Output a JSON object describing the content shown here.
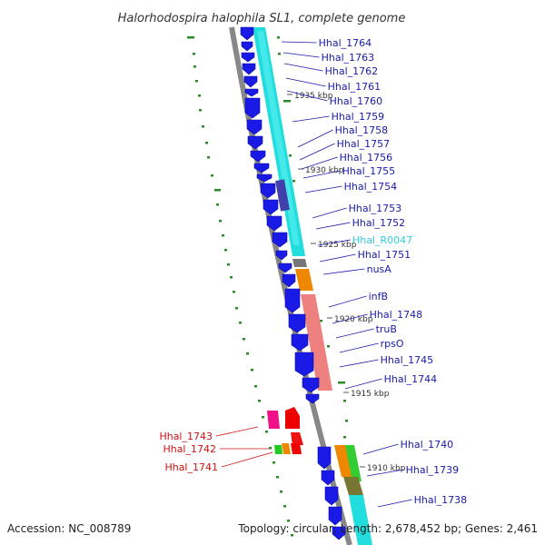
{
  "title": "Halorhodospira halophila SL1, complete genome",
  "footer": {
    "accession": "Accession: NC_008789",
    "stats": "Topology: circular; Length: 2,678,452 bp; Genes: 2,461"
  },
  "colors": {
    "backbone": "#888888",
    "forward_cds": "#1a1ae6",
    "label_right": "#1a1aa8",
    "label_left": "#cc1111",
    "rna_label": "#33ccdd",
    "gc_dots": "#2a8a2a"
  },
  "ticks": [
    {
      "label": "1935 kbp"
    },
    {
      "label": "1930 kbp"
    },
    {
      "label": "1925 kbp"
    },
    {
      "label": "1920 kbp"
    },
    {
      "label": "1915 kbp"
    },
    {
      "label": "1910 kbp"
    }
  ],
  "right_genes": [
    {
      "name": "Hhal_1764"
    },
    {
      "name": "Hhal_1763"
    },
    {
      "name": "Hhal_1762"
    },
    {
      "name": "Hhal_1761"
    },
    {
      "name": "Hhal_1760"
    },
    {
      "name": "Hhal_1759"
    },
    {
      "name": "Hhal_1758"
    },
    {
      "name": "Hhal_1757"
    },
    {
      "name": "Hhal_1756"
    },
    {
      "name": "Hhal_1755"
    },
    {
      "name": "Hhal_1754"
    },
    {
      "name": "Hhal_1753"
    },
    {
      "name": "Hhal_1752"
    },
    {
      "name": "Hhal_R0047"
    },
    {
      "name": "Hhal_1751"
    },
    {
      "name": "nusA"
    },
    {
      "name": "infB"
    },
    {
      "name": "Hhal_1748"
    },
    {
      "name": "truB"
    },
    {
      "name": "rpsO"
    },
    {
      "name": "Hhal_1745"
    },
    {
      "name": "Hhal_1744"
    },
    {
      "name": "Hhal_1740"
    },
    {
      "name": "Hhal_1739"
    },
    {
      "name": "Hhal_1738"
    }
  ],
  "left_genes": [
    {
      "name": "Hhal_1743"
    },
    {
      "name": "Hhal_1742"
    },
    {
      "name": "Hhal_1741"
    }
  ]
}
